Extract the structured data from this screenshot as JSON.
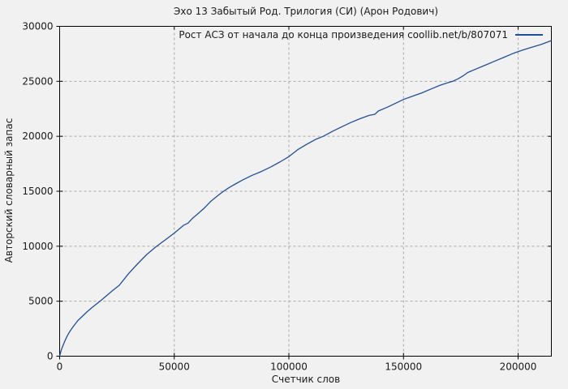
{
  "chart": {
    "title": "Эхо 13 Забытый Род. Трилогия (СИ) (Арон Родович)",
    "legend_label": "Рост АСЗ от начала до конца произведения coollib.net/b/807071",
    "xlabel": "Счетчик слов",
    "ylabel": "Авторский словарный запас"
  },
  "colors": {
    "background": "#f1f1f1",
    "line": "#1d4f9c",
    "grid": "#a8a8a8",
    "axis": "#000000",
    "text": "#1a1a1a"
  },
  "chart_data": {
    "type": "line",
    "title": "Эхо 13 Забытый Род. Трилогия (СИ) (Арон Родович)",
    "xlabel": "Счетчик слов",
    "ylabel": "Авторский словарный запас",
    "xlim": [
      0,
      214500
    ],
    "ylim": [
      0,
      30000
    ],
    "x_ticks": [
      0,
      50000,
      100000,
      150000,
      200000
    ],
    "y_ticks": [
      0,
      5000,
      10000,
      15000,
      20000,
      25000,
      30000
    ],
    "grid": true,
    "grid_style": "dashed",
    "legend_position": "top-right-inside",
    "series": [
      {
        "name": "Рост АСЗ от начала до конца произведения coollib.net/b/807071",
        "color": "#1d4f9c",
        "points": [
          [
            0,
            0
          ],
          [
            500,
            400
          ],
          [
            1000,
            720
          ],
          [
            2000,
            1250
          ],
          [
            3000,
            1720
          ],
          [
            4000,
            2100
          ],
          [
            5000,
            2420
          ],
          [
            6000,
            2720
          ],
          [
            8000,
            3250
          ],
          [
            10000,
            3650
          ],
          [
            12000,
            4050
          ],
          [
            14000,
            4400
          ],
          [
            16000,
            4730
          ],
          [
            18000,
            5070
          ],
          [
            20000,
            5420
          ],
          [
            23000,
            5950
          ],
          [
            26000,
            6450
          ],
          [
            30000,
            7500
          ],
          [
            34000,
            8400
          ],
          [
            38000,
            9250
          ],
          [
            42000,
            9950
          ],
          [
            46000,
            10570
          ],
          [
            50000,
            11200
          ],
          [
            54000,
            11900
          ],
          [
            56000,
            12100
          ],
          [
            58000,
            12550
          ],
          [
            60000,
            12900
          ],
          [
            63000,
            13450
          ],
          [
            66000,
            14100
          ],
          [
            69000,
            14600
          ],
          [
            71500,
            15000
          ],
          [
            74000,
            15350
          ],
          [
            77000,
            15700
          ],
          [
            80000,
            16050
          ],
          [
            84000,
            16450
          ],
          [
            88000,
            16800
          ],
          [
            92000,
            17200
          ],
          [
            96000,
            17650
          ],
          [
            100000,
            18150
          ],
          [
            104000,
            18800
          ],
          [
            108000,
            19300
          ],
          [
            112000,
            19750
          ],
          [
            115000,
            20000
          ],
          [
            119000,
            20450
          ],
          [
            123000,
            20850
          ],
          [
            127000,
            21250
          ],
          [
            131000,
            21600
          ],
          [
            135000,
            21900
          ],
          [
            137500,
            22000
          ],
          [
            139000,
            22300
          ],
          [
            143000,
            22650
          ],
          [
            147000,
            23050
          ],
          [
            150000,
            23350
          ],
          [
            154000,
            23650
          ],
          [
            158000,
            23950
          ],
          [
            162000,
            24300
          ],
          [
            166000,
            24650
          ],
          [
            169000,
            24850
          ],
          [
            171500,
            25000
          ],
          [
            174000,
            25250
          ],
          [
            176000,
            25500
          ],
          [
            178000,
            25800
          ],
          [
            182000,
            26150
          ],
          [
            186000,
            26500
          ],
          [
            190000,
            26850
          ],
          [
            194000,
            27200
          ],
          [
            198000,
            27550
          ],
          [
            202000,
            27850
          ],
          [
            206000,
            28100
          ],
          [
            210000,
            28350
          ],
          [
            214500,
            28700
          ]
        ]
      }
    ]
  }
}
